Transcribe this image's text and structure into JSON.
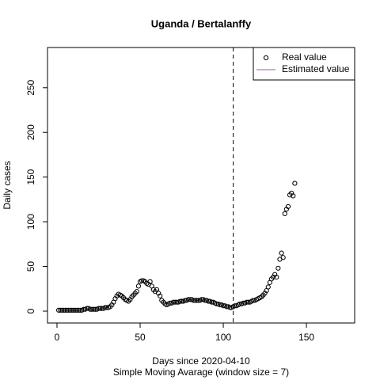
{
  "chart_data": {
    "type": "scatter",
    "title": "Uganda / Bertalanffy",
    "subtitle": "Simple Moving Avarage (window size = 7)",
    "x_label": "Days since 2020-04-10",
    "y_label": "Daily cases",
    "xlim": [
      -5.7,
      179
    ],
    "ylim": [
      -13.3,
      295
    ],
    "xticks": [
      0,
      50,
      100,
      150
    ],
    "yticks": [
      0,
      50,
      100,
      150,
      200,
      250
    ],
    "vline": 106,
    "legend": "top-right",
    "series": [
      {
        "name": "Real value",
        "color": "#000000",
        "x": [
          1,
          2,
          3,
          4,
          5,
          6,
          7,
          8,
          9,
          10,
          11,
          12,
          13,
          14,
          15,
          16,
          17,
          18,
          19,
          20,
          21,
          22,
          23,
          24,
          25,
          26,
          27,
          28,
          29,
          30,
          31,
          32,
          33,
          34,
          35,
          36,
          37,
          38,
          39,
          40,
          41,
          42,
          43,
          44,
          45,
          46,
          47,
          48,
          49,
          50,
          51,
          52,
          53,
          54,
          55,
          56,
          57,
          58,
          59,
          60,
          61,
          62,
          63,
          64,
          65,
          66,
          67,
          68,
          69,
          70,
          71,
          72,
          73,
          74,
          75,
          76,
          77,
          78,
          79,
          80,
          81,
          82,
          83,
          84,
          85,
          86,
          87,
          88,
          89,
          90,
          91,
          92,
          93,
          94,
          95,
          96,
          97,
          98,
          99,
          100,
          101,
          102,
          103,
          104,
          105,
          106,
          107,
          108,
          109,
          110,
          111,
          112,
          113,
          114,
          115,
          116,
          117,
          118,
          119,
          120,
          121,
          122,
          123,
          124,
          125,
          126,
          127,
          128,
          129,
          130,
          131,
          132,
          133,
          134,
          135,
          136,
          137,
          138,
          139,
          140,
          141,
          142,
          143
        ],
        "values": [
          1,
          1,
          1,
          1,
          1,
          1,
          1,
          1,
          1,
          1,
          1,
          1,
          1,
          1,
          1,
          2,
          2,
          3,
          3,
          2,
          2,
          2,
          2,
          2,
          3,
          3,
          3,
          3,
          4,
          4,
          4,
          5,
          7,
          10,
          14,
          17,
          19,
          18,
          17,
          15,
          13,
          12,
          11,
          13,
          16,
          18,
          20,
          22,
          28,
          33,
          34,
          34,
          33,
          31,
          30,
          33,
          28,
          24,
          22,
          24,
          20,
          17,
          12,
          10,
          8,
          7,
          8,
          9,
          9,
          10,
          10,
          10,
          10,
          11,
          11,
          11,
          12,
          12,
          13,
          13,
          13,
          12,
          12,
          12,
          12,
          12,
          13,
          13,
          12,
          12,
          11,
          11,
          10,
          10,
          9,
          8,
          8,
          7,
          7,
          6,
          6,
          5,
          5,
          4,
          4,
          5,
          6,
          6,
          7,
          8,
          8,
          9,
          9,
          10,
          10,
          10,
          11,
          12,
          12,
          13,
          14,
          15,
          16,
          18,
          20,
          23,
          27,
          32,
          36,
          38,
          41,
          38,
          48,
          58,
          65,
          60,
          109,
          114,
          117,
          130,
          132,
          129,
          143
        ]
      },
      {
        "name": "Estimated value",
        "color": "#9b59b6"
      }
    ]
  }
}
